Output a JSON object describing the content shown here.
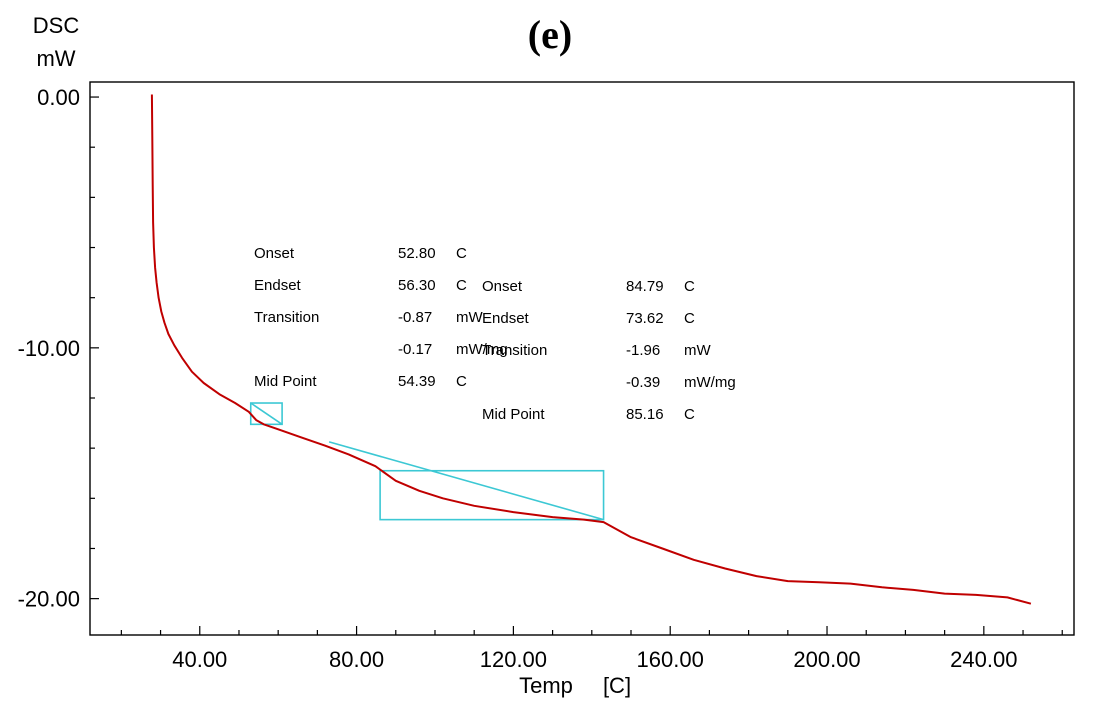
{
  "chart_data": {
    "type": "line",
    "title": "(e)",
    "ylabel": "DSC",
    "yunit": "mW",
    "xlabel": "Temp",
    "xunit": "[C]",
    "xlim": [
      12,
      263
    ],
    "ylim": [
      -21.45,
      0.6
    ],
    "x_ticks": [
      {
        "value": 40,
        "label": "40.00"
      },
      {
        "value": 80,
        "label": "80.00"
      },
      {
        "value": 120,
        "label": "120.00"
      },
      {
        "value": 160,
        "label": "160.00"
      },
      {
        "value": 200,
        "label": "200.00"
      },
      {
        "value": 240,
        "label": "240.00"
      }
    ],
    "y_ticks": [
      {
        "value": 0,
        "label": "0.00"
      },
      {
        "value": -10,
        "label": "-10.00"
      },
      {
        "value": -20,
        "label": "-20.00"
      }
    ],
    "series": [
      {
        "color": "#c00000",
        "x": [
          27.8,
          27.9,
          28.0,
          28.1,
          28.3,
          28.6,
          29.0,
          29.5,
          30.2,
          31.0,
          32.0,
          33.5,
          35.5,
          38.0,
          41.0,
          45.0,
          49.0,
          52.5,
          54.4,
          56.3,
          60.0,
          66.0,
          72.0,
          78.0,
          84.8,
          90.0,
          96.0,
          102.0,
          110.0,
          120.0,
          130.0,
          138.0,
          143.0,
          150.0,
          158.0,
          166.0,
          174.0,
          182.0,
          190.0,
          198.0,
          206.0,
          214.0,
          222.0,
          230.0,
          238.0,
          246.0,
          252.0
        ],
        "y": [
          0.1,
          -1.6,
          -3.5,
          -5.0,
          -6.0,
          -6.8,
          -7.4,
          -8.0,
          -8.55,
          -9.0,
          -9.45,
          -9.9,
          -10.4,
          -10.95,
          -11.4,
          -11.85,
          -12.2,
          -12.55,
          -12.88,
          -13.05,
          -13.25,
          -13.58,
          -13.9,
          -14.25,
          -14.72,
          -15.3,
          -15.7,
          -16.0,
          -16.3,
          -16.55,
          -16.75,
          -16.85,
          -16.95,
          -17.55,
          -18.0,
          -18.45,
          -18.8,
          -19.1,
          -19.3,
          -19.35,
          -19.4,
          -19.55,
          -19.65,
          -19.8,
          -19.85,
          -19.95,
          -20.2
        ]
      }
    ],
    "transition_markers": [
      {
        "rect": {
          "x1": 53,
          "x2": 61,
          "y_top": -12.2,
          "y_bottom": -13.05
        },
        "diagonal": [
          [
            53,
            -12.2
          ],
          [
            61,
            -13.05
          ]
        ],
        "color": "#3cc8d4"
      },
      {
        "rect": {
          "x1": 86,
          "x2": 143,
          "y_top": -14.9,
          "y_bottom": -16.85
        },
        "diagonal": [
          [
            73,
            -13.75
          ],
          [
            143,
            -16.85
          ]
        ],
        "color": "#3cc8d4"
      }
    ],
    "annotations": {
      "peak1": [
        {
          "label": "Onset",
          "value": "52.80",
          "unit": "C"
        },
        {
          "label": "Endset",
          "value": "56.30",
          "unit": "C"
        },
        {
          "label": "Transition",
          "value": "-0.87",
          "unit": "mW"
        },
        {
          "label": "",
          "value": "-0.17",
          "unit": "mW/mg"
        },
        {
          "label": "Mid Point",
          "value": "54.39",
          "unit": "C"
        }
      ],
      "peak2": [
        {
          "label": "Onset",
          "value": "84.79",
          "unit": "C"
        },
        {
          "label": "Endset",
          "value": "73.62",
          "unit": "C"
        },
        {
          "label": "Transition",
          "value": "-1.96",
          "unit": "mW"
        },
        {
          "label": "",
          "value": "-0.39",
          "unit": "mW/mg"
        },
        {
          "label": "Mid Point",
          "value": "85.16",
          "unit": "C"
        }
      ]
    }
  }
}
